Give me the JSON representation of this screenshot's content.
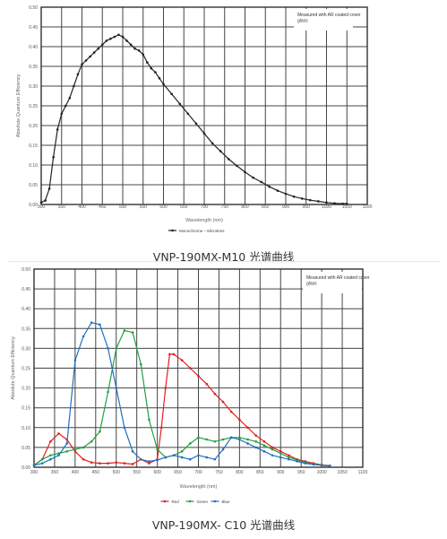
{
  "captions": {
    "top": "VNP-190MX-M10 光谱曲线",
    "bottom": "VNP-190MX- C10 光谱曲线"
  },
  "chart_data": [
    {
      "type": "line",
      "note": "Measured with AR coated cover glass",
      "xlabel": "Wavelength (nm)",
      "ylabel": "Absolute Quantum Efficiency",
      "xlim": [
        300,
        1100
      ],
      "ylim": [
        0,
        0.5
      ],
      "xticks": [
        300,
        350,
        400,
        450,
        500,
        550,
        600,
        650,
        700,
        750,
        800,
        850,
        900,
        950,
        1000,
        1050,
        1100
      ],
      "yticks": [
        0.0,
        0.05,
        0.1,
        0.15,
        0.2,
        0.25,
        0.3,
        0.35,
        0.4,
        0.45,
        0.5
      ],
      "grid": true,
      "legend_position": "bottom",
      "series": [
        {
          "name": "Monochrome – Microlens",
          "color": "#222222",
          "x": [
            300,
            310,
            320,
            330,
            340,
            350,
            360,
            370,
            380,
            390,
            400,
            410,
            420,
            430,
            440,
            450,
            460,
            470,
            480,
            490,
            500,
            510,
            520,
            530,
            540,
            550,
            560,
            570,
            580,
            590,
            600,
            620,
            640,
            660,
            680,
            700,
            720,
            740,
            760,
            780,
            800,
            820,
            840,
            860,
            880,
            900,
            920,
            940,
            960,
            980,
            1000,
            1020,
            1040,
            1050
          ],
          "y": [
            0.005,
            0.01,
            0.04,
            0.12,
            0.19,
            0.23,
            0.25,
            0.27,
            0.3,
            0.33,
            0.355,
            0.365,
            0.375,
            0.385,
            0.395,
            0.405,
            0.415,
            0.42,
            0.425,
            0.43,
            0.425,
            0.415,
            0.405,
            0.395,
            0.39,
            0.38,
            0.36,
            0.345,
            0.335,
            0.32,
            0.305,
            0.28,
            0.255,
            0.23,
            0.205,
            0.18,
            0.155,
            0.135,
            0.115,
            0.098,
            0.082,
            0.068,
            0.057,
            0.045,
            0.035,
            0.027,
            0.02,
            0.015,
            0.011,
            0.008,
            0.005,
            0.003,
            0.002,
            0.002
          ]
        }
      ]
    },
    {
      "type": "line",
      "note": "Measured with AR coated cover glass",
      "xlabel": "Wavelength (nm)",
      "ylabel": "Absolute Quantum Efficiency",
      "xlim": [
        300,
        1100
      ],
      "ylim": [
        0,
        0.5
      ],
      "xticks": [
        300,
        350,
        400,
        450,
        500,
        550,
        600,
        650,
        700,
        750,
        800,
        850,
        900,
        950,
        1000,
        1050,
        1100
      ],
      "yticks": [
        0.0,
        0.05,
        0.1,
        0.15,
        0.2,
        0.25,
        0.3,
        0.35,
        0.4,
        0.45,
        0.5
      ],
      "grid": true,
      "legend_position": "bottom",
      "series": [
        {
          "name": "Red",
          "color": "#e02020",
          "x": [
            300,
            320,
            340,
            360,
            380,
            400,
            420,
            440,
            460,
            480,
            500,
            520,
            540,
            560,
            580,
            600,
            610,
            620,
            630,
            640,
            660,
            680,
            700,
            720,
            740,
            760,
            780,
            800,
            820,
            840,
            860,
            880,
            900,
            920,
            940,
            960,
            980,
            1000,
            1020
          ],
          "y": [
            0.005,
            0.02,
            0.065,
            0.085,
            0.07,
            0.04,
            0.02,
            0.012,
            0.01,
            0.01,
            0.012,
            0.01,
            0.008,
            0.02,
            0.01,
            0.02,
            0.1,
            0.2,
            0.285,
            0.285,
            0.27,
            0.25,
            0.23,
            0.21,
            0.185,
            0.165,
            0.14,
            0.12,
            0.1,
            0.08,
            0.065,
            0.05,
            0.04,
            0.03,
            0.02,
            0.015,
            0.01,
            0.006,
            0.004
          ]
        },
        {
          "name": "Green",
          "color": "#20a040",
          "x": [
            300,
            320,
            340,
            360,
            380,
            400,
            420,
            440,
            460,
            480,
            500,
            520,
            540,
            560,
            580,
            600,
            620,
            640,
            660,
            680,
            700,
            720,
            740,
            760,
            780,
            800,
            820,
            840,
            860,
            880,
            900,
            920,
            940,
            960,
            980,
            1000,
            1020
          ],
          "y": [
            0.005,
            0.02,
            0.03,
            0.035,
            0.04,
            0.045,
            0.05,
            0.065,
            0.09,
            0.19,
            0.3,
            0.345,
            0.34,
            0.26,
            0.12,
            0.045,
            0.025,
            0.03,
            0.04,
            0.06,
            0.075,
            0.07,
            0.065,
            0.07,
            0.075,
            0.075,
            0.07,
            0.065,
            0.055,
            0.045,
            0.035,
            0.025,
            0.018,
            0.012,
            0.008,
            0.005,
            0.003
          ]
        },
        {
          "name": "Blue",
          "color": "#2070c0",
          "x": [
            300,
            320,
            340,
            360,
            380,
            400,
            420,
            440,
            460,
            480,
            500,
            520,
            540,
            560,
            580,
            600,
            620,
            640,
            660,
            680,
            700,
            720,
            740,
            760,
            780,
            800,
            820,
            840,
            860,
            880,
            900,
            920,
            940,
            960,
            980,
            1000,
            1020
          ],
          "y": [
            0.005,
            0.01,
            0.02,
            0.03,
            0.06,
            0.27,
            0.33,
            0.365,
            0.36,
            0.3,
            0.2,
            0.1,
            0.04,
            0.02,
            0.015,
            0.018,
            0.025,
            0.03,
            0.025,
            0.02,
            0.03,
            0.025,
            0.02,
            0.045,
            0.075,
            0.07,
            0.06,
            0.05,
            0.04,
            0.03,
            0.025,
            0.02,
            0.015,
            0.01,
            0.007,
            0.005,
            0.003
          ]
        }
      ]
    }
  ]
}
